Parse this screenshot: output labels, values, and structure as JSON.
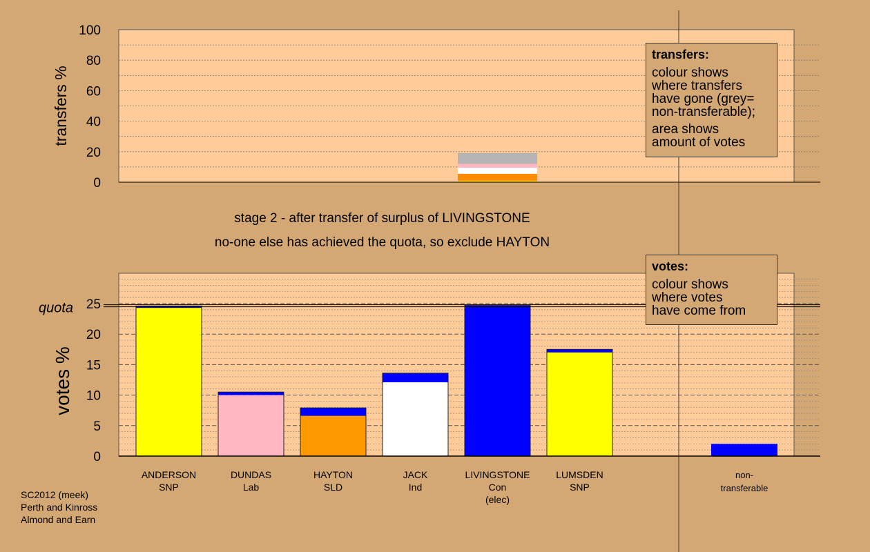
{
  "chart_data": [
    {
      "type": "bar",
      "name": "transfers",
      "ylabel": "transfers %",
      "ylim": [
        0,
        100
      ],
      "yticks": [
        0,
        20,
        40,
        60,
        80,
        100
      ],
      "bars": [
        {
          "candidate": "LIVINGSTONE",
          "segments": [
            {
              "color": "#ffd700",
              "from": 0,
              "to": 1
            },
            {
              "color": "#ff8c00",
              "from": 1,
              "to": 5.5
            },
            {
              "color": "#ffffff",
              "from": 5.5,
              "to": 9.5
            },
            {
              "color": "#ffb6c1",
              "from": 9.5,
              "to": 12
            },
            {
              "color": "#b4b4b4",
              "from": 12,
              "to": 19
            }
          ]
        }
      ]
    },
    {
      "type": "bar",
      "name": "votes",
      "ylabel": "votes %",
      "ylim": [
        0,
        29
      ],
      "yticks": [
        0,
        5,
        10,
        15,
        20,
        25
      ],
      "quota": 24.7,
      "quota_label": "quota",
      "categories": [
        {
          "name": "ANDERSON",
          "party": "SNP",
          "extra": ""
        },
        {
          "name": "DUNDAS",
          "party": "Lab",
          "extra": ""
        },
        {
          "name": "HAYTON",
          "party": "SLD",
          "extra": ""
        },
        {
          "name": "JACK",
          "party": "Ind",
          "extra": ""
        },
        {
          "name": "LIVINGSTONE",
          "party": "Con",
          "extra": "(elec)"
        },
        {
          "name": "LUMSDEN",
          "party": "SNP",
          "extra": ""
        }
      ],
      "nontransferable_label": [
        "non-",
        "transferable"
      ],
      "series": [
        {
          "color": "#ffff00",
          "values": [
            24.3,
            0,
            0,
            0,
            0,
            17.0
          ]
        },
        {
          "color": "#ffb6c1",
          "values": [
            0,
            10.0,
            0,
            0,
            0,
            0
          ]
        },
        {
          "color": "#ff9900",
          "values": [
            0,
            0,
            6.6,
            0,
            0,
            0
          ]
        },
        {
          "color": "#ffffff",
          "values": [
            0,
            0,
            0,
            12.1,
            0,
            0
          ]
        },
        {
          "color": "#0000ff",
          "values": [
            0.3,
            0.5,
            1.3,
            1.5,
            24.7,
            0.5
          ]
        }
      ],
      "nontransferable_value": 2.0
    }
  ],
  "captions": {
    "line1": "stage 2 - after transfer of surplus of LIVINGSTONE",
    "line2": "no-one else has achieved the quota, so exclude HAYTON"
  },
  "legend_transfers": {
    "title": "transfers:",
    "lines1": [
      "colour shows",
      "where transfers",
      "have gone (grey=",
      "non-transferable);"
    ],
    "lines2": [
      "area shows",
      "amount of votes"
    ]
  },
  "legend_votes": {
    "title": "votes:",
    "lines": [
      "colour shows",
      "where votes",
      "have come from"
    ]
  },
  "footnote": [
    "SC2012 (meek)",
    "Perth and Kinross",
    "Almond and Earn"
  ],
  "colors": {
    "background": "#d4a874",
    "plot_background": "#ffcc99",
    "non_transferable": "#b4b4b4"
  }
}
